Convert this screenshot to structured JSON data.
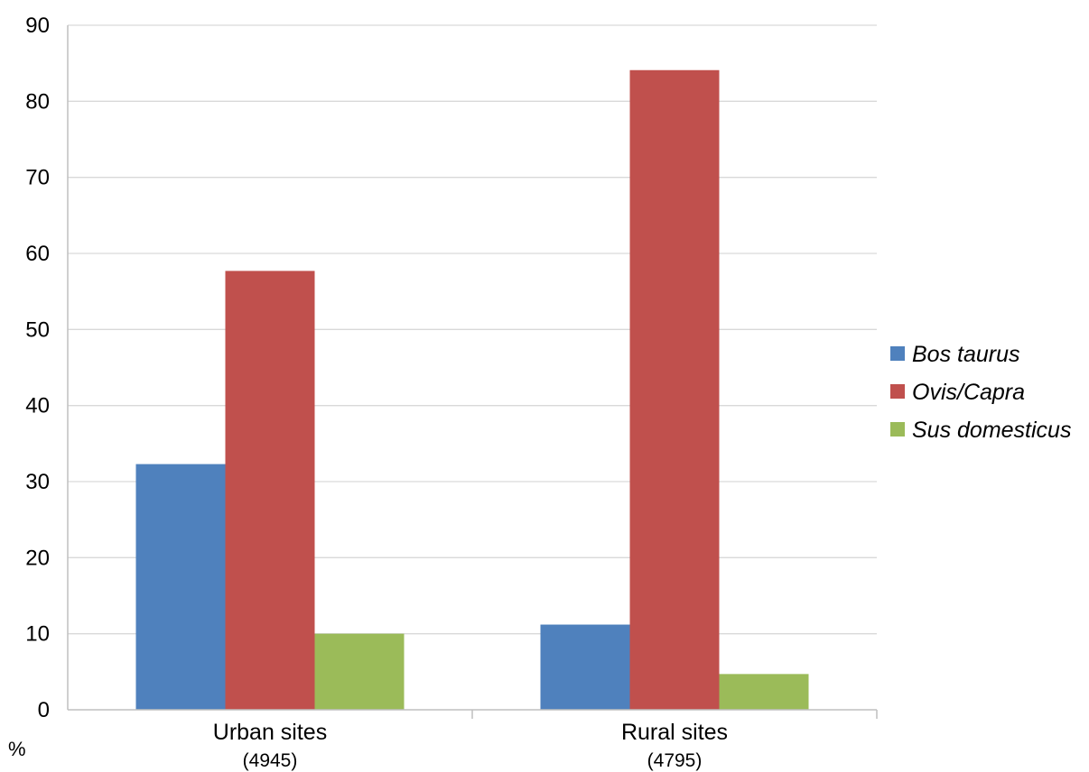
{
  "chart_data": {
    "type": "bar",
    "categories": [
      "Urban sites",
      "Rural sites"
    ],
    "category_counts": [
      "(4945)",
      "(4795)"
    ],
    "series": [
      {
        "name": "Bos taurus",
        "color": "#4f81bd",
        "values": [
          32.3,
          11.2
        ]
      },
      {
        "name": "Ovis/Capra",
        "color": "#c0504d",
        "values": [
          57.7,
          84.1
        ]
      },
      {
        "name": "Sus domesticus",
        "color": "#9bbb59",
        "values": [
          10.0,
          4.7
        ]
      }
    ],
    "ylabel": "%",
    "ylim": [
      0,
      90
    ],
    "yticks": [
      0,
      10,
      20,
      30,
      40,
      50,
      60,
      70,
      80,
      90
    ],
    "grid": true,
    "legend_position": "right"
  }
}
